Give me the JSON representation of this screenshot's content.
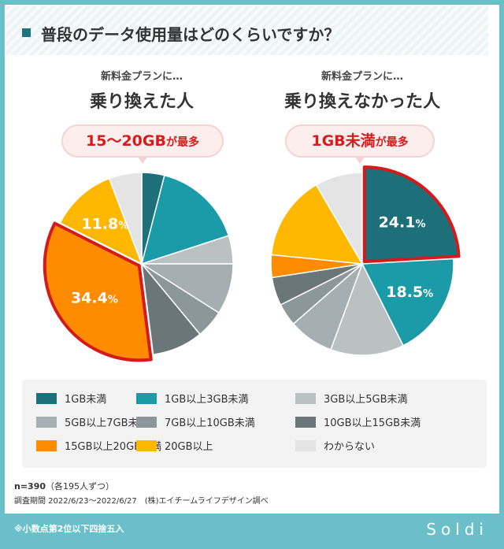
{
  "title": "普段のデータ使用量はどのくらいですか？",
  "legend": [
    "1GB未満",
    "1GB以上3GB未満",
    "3GB以上5GB未満",
    "5GB以上7GB未満",
    "7GB以上10GB未満",
    "10GB以上15GB未満",
    "15GB以上20GB未満",
    "20GB以上",
    "わからない"
  ],
  "colors": [
    "#1d6f7a",
    "#1b9ba7",
    "#b9c1c3",
    "#a5afb2",
    "#8c979a",
    "#6b7679",
    "#ff8c00",
    "#ffb700",
    "#e4e4e4"
  ],
  "chart_data": [
    {
      "type": "pie",
      "subtitle": "新料金プランに…",
      "title": "乗り換えた人",
      "callout_main": "15〜20GB",
      "callout_suffix": "が最多",
      "highlight": 6,
      "categories": [
        "1GB未満",
        "1GB以上3GB未満",
        "3GB以上5GB未満",
        "5GB以上7GB未満",
        "7GB以上10GB未満",
        "10GB以上15GB未満",
        "15GB以上20GB未満",
        "20GB以上",
        "わからない"
      ],
      "values": [
        4.0,
        16.0,
        5.0,
        9.0,
        5.0,
        9.0,
        34.4,
        11.8,
        5.8
      ],
      "data_labels": {
        "6": "34.4",
        "7": "11.8"
      }
    },
    {
      "type": "pie",
      "subtitle": "新料金プランに…",
      "title": "乗り換えなかった人",
      "callout_main": "1GB未満",
      "callout_suffix": "が最多",
      "highlight": 0,
      "categories": [
        "1GB未満",
        "1GB以上3GB未満",
        "3GB以上5GB未満",
        "5GB以上7GB未満",
        "7GB以上10GB未満",
        "10GB以上15GB未満",
        "15GB以上20GB未満",
        "20GB以上",
        "わからない"
      ],
      "values": [
        24.1,
        18.5,
        13.0,
        8.0,
        4.0,
        5.0,
        4.0,
        15.0,
        8.4
      ],
      "data_labels": {
        "0": "24.1",
        "1": "18.5"
      }
    }
  ],
  "pct": "%",
  "sample": "n=390",
  "sample_note": "（各195人ずつ）",
  "period": "調査期間 2022/6/23〜2022/6/27　(株)エイチームライフデザイン調べ",
  "footnote": "※小数点第2位以下四捨五入",
  "logo": "Soldi"
}
